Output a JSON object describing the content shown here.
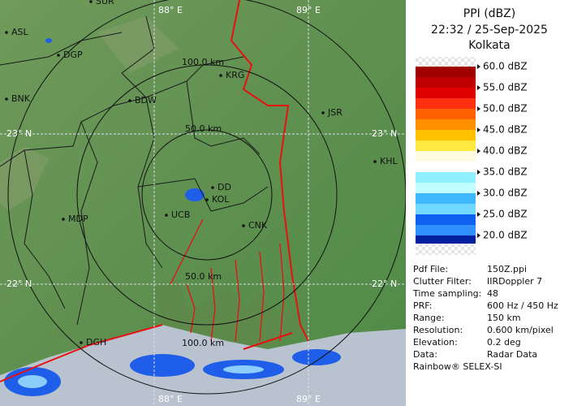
{
  "header": {
    "title": "PPI (dBZ)",
    "time": "22:32 / 25-Sep-2025",
    "station": "Kolkata"
  },
  "legend": {
    "labels": [
      "60.0 dBZ",
      "55.0 dBZ",
      "50.0 dBZ",
      "45.0 dBZ",
      "40.0 dBZ",
      "35.0 dBZ",
      "30.0 dBZ",
      "25.0 dBZ",
      "20.0 dBZ"
    ]
  },
  "info": {
    "rows": [
      [
        "Pdf File:",
        "150Z.ppi"
      ],
      [
        "Clutter Filter:",
        "IIRDoppler 7"
      ],
      [
        "Time sampling:",
        "48"
      ],
      [
        "PRF:",
        "600 Hz / 450 Hz"
      ],
      [
        "Range:",
        "150 km"
      ],
      [
        "Resolution:",
        "0.600 km/pixel"
      ],
      [
        "Elevation:",
        "0.2 deg"
      ],
      [
        "Data:",
        "Radar Data"
      ]
    ],
    "footer": "Rainbow® SELEX-SI"
  },
  "map": {
    "grid": [
      "88° E",
      "89° E",
      "23° N",
      "22° N",
      "23° N",
      "22° N",
      "88° E",
      "89° E"
    ],
    "ranges": [
      "100.0 km",
      "50.0 km",
      "50.0 km",
      "100.0 km"
    ],
    "places": [
      "ASL",
      "DGP",
      "BNK",
      "BDW",
      "KRG",
      "JSR",
      "KHL",
      "MDP",
      "DD",
      "KOL",
      "UCB",
      "CNK",
      "DGH",
      "SUR"
    ]
  }
}
